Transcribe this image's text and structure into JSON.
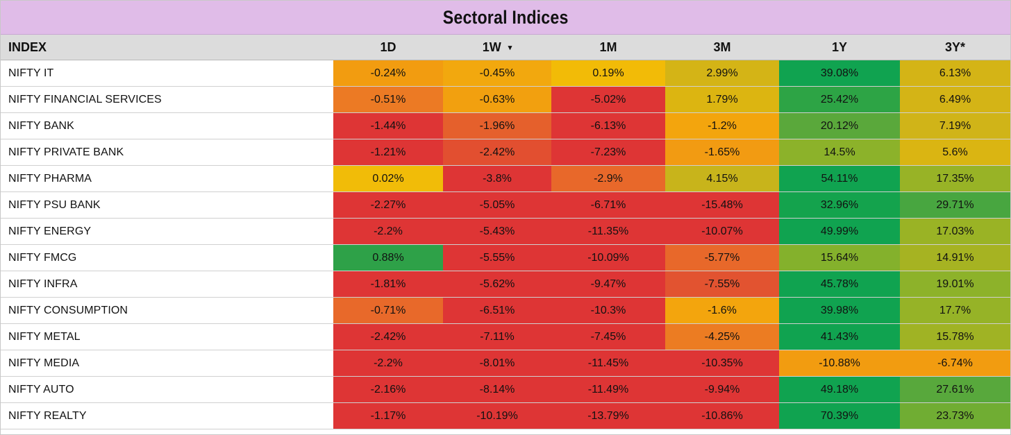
{
  "title": "Sectoral Indices",
  "chart_data": {
    "type": "table",
    "title": "Sectoral Indices",
    "columns": [
      "INDEX",
      "1D",
      "1W",
      "1M",
      "3M",
      "1Y",
      "3Y*"
    ],
    "sorted_column": "1W",
    "sort_indicator": "▾",
    "rows": [
      {
        "index": "NIFTY IT",
        "values": [
          "-0.24%",
          "-0.45%",
          "0.19%",
          "2.99%",
          "39.08%",
          "6.13%"
        ],
        "colors": [
          "#f29c10",
          "#f2a80e",
          "#f2bb07",
          "#d4b416",
          "#10a350",
          "#d4b416"
        ]
      },
      {
        "index": "NIFTY FINANCIAL SERVICES",
        "values": [
          "-0.51%",
          "-0.63%",
          "-5.02%",
          "1.79%",
          "25.42%",
          "6.49%"
        ],
        "colors": [
          "#ec7a24",
          "#f2a00f",
          "#de3535",
          "#dcb511",
          "#2da445",
          "#d4b416"
        ]
      },
      {
        "index": "NIFTY BANK",
        "values": [
          "-1.44%",
          "-1.96%",
          "-6.13%",
          "-1.2%",
          "20.12%",
          "7.19%"
        ],
        "colors": [
          "#de3535",
          "#e5602c",
          "#de3535",
          "#f3a50d",
          "#5aa83b",
          "#d0b418"
        ]
      },
      {
        "index": "NIFTY PRIVATE BANK",
        "values": [
          "-1.21%",
          "-2.42%",
          "-7.23%",
          "-1.65%",
          "14.5%",
          "5.6%"
        ],
        "colors": [
          "#de3535",
          "#e24f30",
          "#de3535",
          "#f29b12",
          "#8cb22a",
          "#dab512"
        ]
      },
      {
        "index": "NIFTY PHARMA",
        "values": [
          "0.02%",
          "-3.8%",
          "-2.9%",
          "4.15%",
          "54.11%",
          "17.35%"
        ],
        "colors": [
          "#f1bc08",
          "#de3535",
          "#e8682a",
          "#c8b41b",
          "#10a350",
          "#98b326"
        ]
      },
      {
        "index": "NIFTY PSU BANK",
        "values": [
          "-2.27%",
          "-5.05%",
          "-6.71%",
          "-15.48%",
          "32.96%",
          "29.71%"
        ],
        "colors": [
          "#de3535",
          "#de3535",
          "#de3535",
          "#de3535",
          "#14a34d",
          "#48a640"
        ]
      },
      {
        "index": "NIFTY ENERGY",
        "values": [
          "-2.2%",
          "-5.43%",
          "-11.35%",
          "-10.07%",
          "49.99%",
          "17.03%"
        ],
        "colors": [
          "#de3535",
          "#de3535",
          "#de3535",
          "#de3535",
          "#10a350",
          "#9ab325"
        ]
      },
      {
        "index": "NIFTY FMCG",
        "values": [
          "0.88%",
          "-5.55%",
          "-10.09%",
          "-5.77%",
          "15.64%",
          "14.91%"
        ],
        "colors": [
          "#2ea148",
          "#de3535",
          "#de3535",
          "#e8682a",
          "#84b12c",
          "#a6b322"
        ]
      },
      {
        "index": "NIFTY INFRA",
        "values": [
          "-1.81%",
          "-5.62%",
          "-9.47%",
          "-7.55%",
          "45.78%",
          "19.01%"
        ],
        "colors": [
          "#de3535",
          "#de3535",
          "#de3535",
          "#e25330",
          "#10a350",
          "#8db22a"
        ]
      },
      {
        "index": "NIFTY CONSUMPTION",
        "values": [
          "-0.71%",
          "-6.51%",
          "-10.3%",
          "-1.6%",
          "39.98%",
          "17.7%"
        ],
        "colors": [
          "#e8692a",
          "#de3535",
          "#de3535",
          "#f3a50d",
          "#10a350",
          "#96b327"
        ]
      },
      {
        "index": "NIFTY METAL",
        "values": [
          "-2.42%",
          "-7.11%",
          "-7.45%",
          "-4.25%",
          "41.43%",
          "15.78%"
        ],
        "colors": [
          "#de3535",
          "#de3535",
          "#de3535",
          "#ec7c22",
          "#10a350",
          "#a0b324"
        ]
      },
      {
        "index": "NIFTY MEDIA",
        "values": [
          "-2.2%",
          "-8.01%",
          "-11.45%",
          "-10.35%",
          "-10.88%",
          "-6.74%"
        ],
        "colors": [
          "#de3535",
          "#de3535",
          "#de3535",
          "#de3535",
          "#f29c10",
          "#f29c10"
        ]
      },
      {
        "index": "NIFTY AUTO",
        "values": [
          "-2.16%",
          "-8.14%",
          "-11.49%",
          "-9.94%",
          "49.18%",
          "27.61%"
        ],
        "colors": [
          "#de3535",
          "#de3535",
          "#de3535",
          "#de3535",
          "#10a350",
          "#58a83c"
        ]
      },
      {
        "index": "NIFTY REALTY",
        "values": [
          "-1.17%",
          "-10.19%",
          "-13.79%",
          "-10.86%",
          "70.39%",
          "23.73%"
        ],
        "colors": [
          "#de3535",
          "#de3535",
          "#de3535",
          "#de3535",
          "#10a350",
          "#70ad33"
        ]
      }
    ]
  }
}
